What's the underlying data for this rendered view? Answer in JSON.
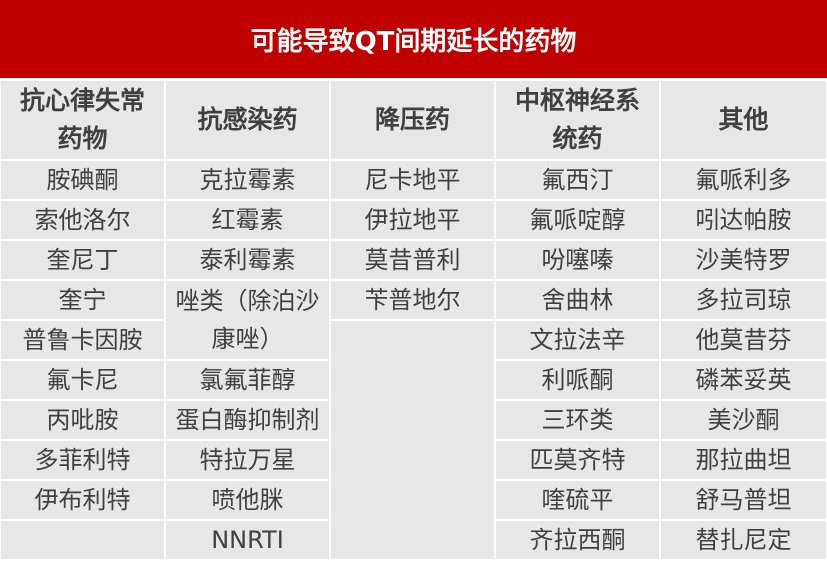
{
  "title": "可能导致QT间期延长的药物",
  "table": {
    "columns": [
      {
        "header": "抗心律失常药物",
        "items": [
          "胺碘酮",
          "索他洛尔",
          "奎尼丁",
          "奎宁",
          "普鲁卡因胺",
          "氟卡尼",
          "丙吡胺",
          "多菲利特",
          "伊布利特"
        ]
      },
      {
        "header": "抗感染药",
        "items": [
          "克拉霉素",
          "红霉素",
          "泰利霉素",
          "唑类（除泊沙康唑）",
          "氯氟菲醇",
          "蛋白酶抑制剂",
          "特拉万星",
          "喷他脒",
          "NNRTI"
        ]
      },
      {
        "header": "降压药",
        "items": [
          "尼卡地平",
          "伊拉地平",
          "莫昔普利",
          "苄普地尔"
        ]
      },
      {
        "header": "中枢神经系统药",
        "items": [
          "氟西汀",
          "氟哌啶醇",
          "吩噻嗪",
          "舍曲林",
          "文拉法辛",
          "利哌酮",
          "三环类",
          "匹莫齐特",
          "喹硫平",
          "齐拉西酮"
        ]
      },
      {
        "header": "其他",
        "items": [
          "氟哌利多",
          "吲达帕胺",
          "沙美特罗",
          "多拉司琼",
          "他莫昔芬",
          "磷苯妥英",
          "美沙酮",
          "那拉曲坦",
          "舒马普坦",
          "替扎尼定"
        ]
      }
    ]
  }
}
